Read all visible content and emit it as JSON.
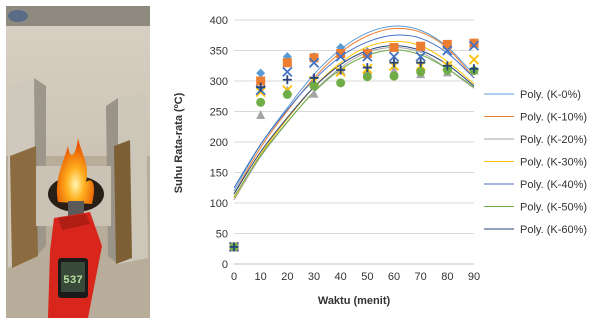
{
  "photo": {
    "description_icon": "burner-with-thermometer-photo",
    "thermometer_reading": "537"
  },
  "chart_data": {
    "type": "scatter",
    "title": "",
    "xlabel": "Waktu (menit)",
    "ylabel": "Suhu Rata-rata (ºC)",
    "xlim": [
      0,
      90
    ],
    "ylim": [
      0,
      400
    ],
    "x_ticks": [
      0,
      10,
      20,
      30,
      40,
      50,
      60,
      70,
      80,
      90
    ],
    "y_ticks": [
      0,
      50,
      100,
      150,
      200,
      250,
      300,
      350,
      400
    ],
    "grid": "horizontal",
    "legend_position": "right",
    "x": [
      0,
      10,
      20,
      30,
      40,
      50,
      60,
      70,
      80,
      90
    ],
    "series": [
      {
        "name": "Poly. (K-0%)",
        "color": "#5b9bd5",
        "marker": "diamond",
        "values": [
          28,
          313,
          340,
          340,
          355,
          348,
          355,
          355,
          358,
          362
        ],
        "fit_curve": [
          120,
          196,
          256,
          311,
          352,
          379,
          390,
          383,
          356,
          310
        ]
      },
      {
        "name": "Poly. (K-10%)",
        "color": "#ed7d31",
        "marker": "square",
        "values": [
          28,
          300,
          330,
          338,
          345,
          345,
          355,
          357,
          360,
          362
        ],
        "fit_curve": [
          115,
          191,
          251,
          305,
          347,
          374,
          386,
          380,
          354,
          305
        ]
      },
      {
        "name": "Poly. (K-20%)",
        "color": "#a5a5a5",
        "marker": "triangle",
        "values": [
          28,
          245,
          285,
          280,
          318,
          318,
          318,
          312,
          315,
          318
        ],
        "fit_curve": [
          105,
          176,
          232,
          283,
          322,
          347,
          355,
          347,
          320,
          288
        ]
      },
      {
        "name": "Poly. (K-30%)",
        "color": "#ffc000",
        "marker": "x",
        "values": [
          28,
          282,
          285,
          300,
          315,
          320,
          325,
          325,
          325,
          335
        ],
        "fit_curve": [
          108,
          180,
          238,
          290,
          330,
          356,
          365,
          358,
          332,
          295
        ]
      },
      {
        "name": "Poly. (K-40%)",
        "color": "#4472c4",
        "marker": "x",
        "values": [
          28,
          285,
          315,
          330,
          340,
          340,
          340,
          340,
          350,
          358
        ],
        "fit_curve": [
          125,
          196,
          253,
          302,
          340,
          364,
          375,
          370,
          346,
          305
        ]
      },
      {
        "name": "Poly. (K-50%)",
        "color": "#70ad47",
        "marker": "circle",
        "values": [
          28,
          265,
          278,
          292,
          297,
          307,
          308,
          315,
          318,
          317
        ],
        "fit_curve": [
          110,
          178,
          233,
          282,
          319,
          342,
          351,
          343,
          320,
          290
        ]
      },
      {
        "name": "Poly. (K-60%)",
        "color": "#264478",
        "marker": "plus",
        "values": [
          28,
          290,
          302,
          305,
          318,
          322,
          330,
          330,
          325,
          320
        ],
        "fit_curve": [
          115,
          184,
          240,
          290,
          327,
          350,
          358,
          350,
          327,
          292
        ]
      }
    ]
  }
}
